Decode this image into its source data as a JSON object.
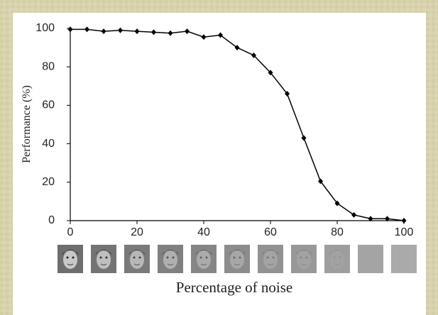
{
  "chart_data": {
    "type": "line",
    "xlabel": "Percentage of noise",
    "ylabel": "Performance (%)",
    "x": [
      0,
      5,
      10,
      15,
      20,
      25,
      30,
      35,
      40,
      45,
      50,
      55,
      60,
      65,
      70,
      75,
      80,
      85,
      90,
      95,
      100
    ],
    "values": [
      99.5,
      99.5,
      98.5,
      99,
      98.5,
      98,
      97.5,
      98.5,
      95.5,
      96.5,
      90,
      86,
      77,
      66,
      43,
      20.5,
      9,
      3,
      1,
      1,
      0
    ],
    "color": "#000000",
    "xlim": [
      0,
      100
    ],
    "xticks": [
      0,
      20,
      40,
      60,
      80,
      100
    ],
    "ylim": [
      0,
      100
    ],
    "yticks": [
      0,
      20,
      40,
      60,
      80,
      100
    ]
  }
}
